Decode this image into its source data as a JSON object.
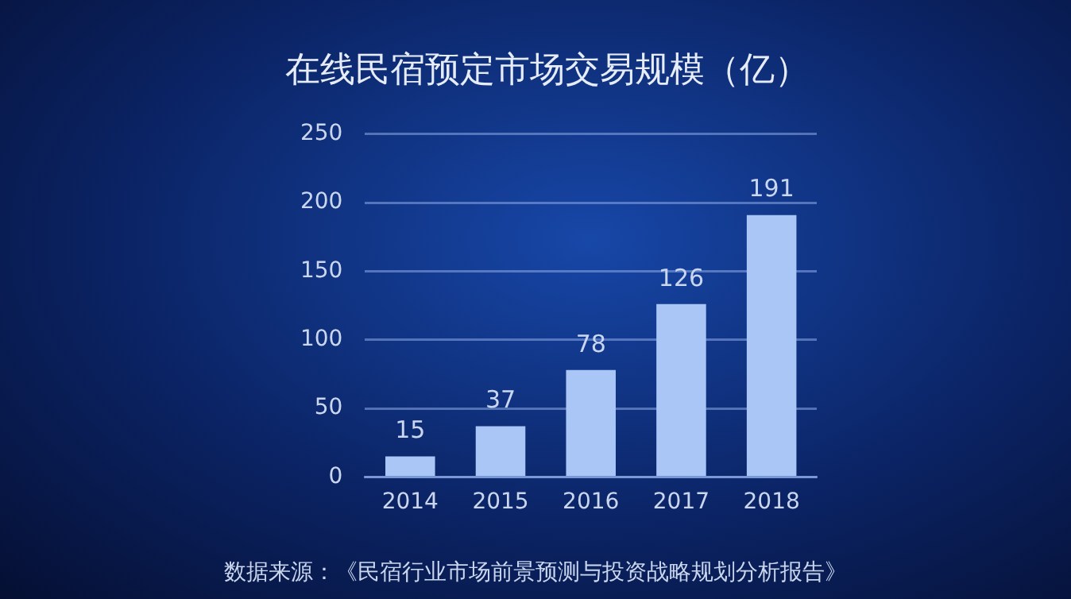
{
  "chart_data": {
    "type": "bar",
    "title": "在线民宿预定市场交易规模（亿）",
    "categories": [
      "2014",
      "2015",
      "2016",
      "2017",
      "2018"
    ],
    "values": [
      15,
      37,
      78,
      126,
      191
    ],
    "color": "#a9c6f7",
    "ylim": [
      0,
      250
    ],
    "yticks": [
      0,
      50,
      100,
      150,
      200,
      250
    ],
    "grid": "y",
    "data_labels": true,
    "annotations": [
      "数据来源：《民宿行业市场前景预测与投资战略规划分析报告》"
    ]
  }
}
